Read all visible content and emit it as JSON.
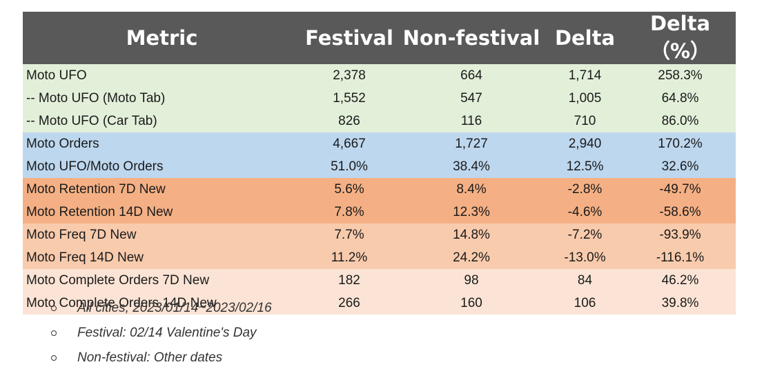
{
  "table": {
    "headers": [
      "Metric",
      "Festival",
      "Non-festival",
      "Delta",
      "Delta （%）"
    ],
    "rows": [
      {
        "group": "green",
        "cells": [
          "Moto UFO",
          "2,378",
          "664",
          "1,714",
          "258.3%"
        ]
      },
      {
        "group": "green",
        "cells": [
          "-- Moto UFO (Moto Tab)",
          "1,552",
          "547",
          "1,005",
          "64.8%"
        ]
      },
      {
        "group": "green",
        "cells": [
          "-- Moto UFO (Car Tab)",
          "826",
          "116",
          "710",
          "86.0%"
        ]
      },
      {
        "group": "blue",
        "cells": [
          "Moto Orders",
          "4,667",
          "1,727",
          "2,940",
          "170.2%"
        ]
      },
      {
        "group": "blue",
        "cells": [
          "Moto UFO/Moto Orders",
          "51.0%",
          "38.4%",
          "12.5%",
          "32.6%"
        ]
      },
      {
        "group": "orange",
        "cells": [
          "Moto Retention 7D New",
          "5.6%",
          "8.4%",
          "-2.8%",
          "-49.7%"
        ]
      },
      {
        "group": "orange",
        "cells": [
          "Moto Retention 14D New",
          "7.8%",
          "12.3%",
          "-4.6%",
          "-58.6%"
        ]
      },
      {
        "group": "peach",
        "cells": [
          "Moto Freq 7D New",
          "7.7%",
          "14.8%",
          "-7.2%",
          "-93.9%"
        ]
      },
      {
        "group": "peach",
        "cells": [
          "Moto Freq 14D New",
          "11.2%",
          "24.2%",
          "-13.0%",
          "-116.1%"
        ]
      },
      {
        "group": "light",
        "cells": [
          "Moto Complete Orders 7D New",
          "182",
          "98",
          "84",
          "46.2%"
        ]
      },
      {
        "group": "light",
        "cells": [
          "Moto Complete Orders 14D New",
          "266",
          "160",
          "106",
          "39.8%"
        ]
      }
    ]
  },
  "notes": [
    "All cities, 2023/01/14~2023/02/16",
    "Festival: 02/14 Valentine's Day",
    "Non-festival: Other dates"
  ],
  "colors": {
    "header_bg": "#595959",
    "green": "#e2efd9",
    "blue": "#bdd7ee",
    "orange": "#f4b084",
    "peach": "#f8cbad",
    "light": "#fbe4d5"
  }
}
